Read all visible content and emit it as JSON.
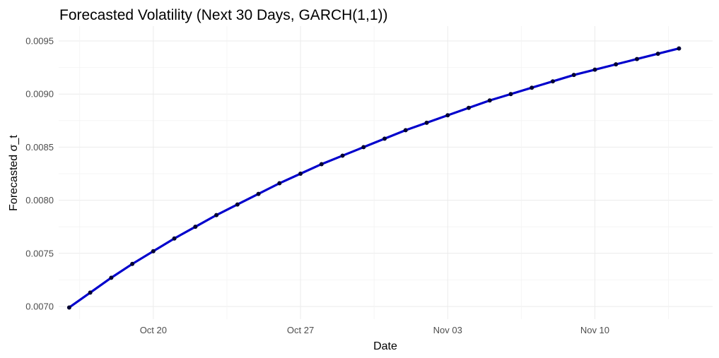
{
  "chart_data": {
    "type": "line",
    "title": "Forecasted Volatility (Next 30 Days, GARCH(1,1))",
    "xlabel": "Date",
    "ylabel": "Forecasted σ_t",
    "x_ticks": [
      {
        "day": 4,
        "label": "Oct 20"
      },
      {
        "day": 11,
        "label": "Oct 27"
      },
      {
        "day": 18,
        "label": "Nov 03"
      },
      {
        "day": 25,
        "label": "Nov 10"
      }
    ],
    "y_ticks": [
      "0.0070",
      "0.0075",
      "0.0080",
      "0.0085",
      "0.0090",
      "0.0095"
    ],
    "ylim": [
      0.00688,
      0.00964
    ],
    "xlim_days": [
      -0.5,
      30.6
    ],
    "grid": true,
    "line_color": "#0000cc",
    "point_color": "#000033",
    "series": [
      {
        "x_start_date": "Oct 16",
        "values": [
          0.00699,
          0.00713,
          0.00727,
          0.0074,
          0.00752,
          0.00764,
          0.00775,
          0.00786,
          0.00796,
          0.00806,
          0.00816,
          0.00825,
          0.00834,
          0.00842,
          0.0085,
          0.00858,
          0.00866,
          0.00873,
          0.0088,
          0.00887,
          0.00894,
          0.009,
          0.00906,
          0.00912,
          0.00918,
          0.00923,
          0.00928,
          0.00933,
          0.00938,
          0.00943
        ]
      }
    ]
  }
}
